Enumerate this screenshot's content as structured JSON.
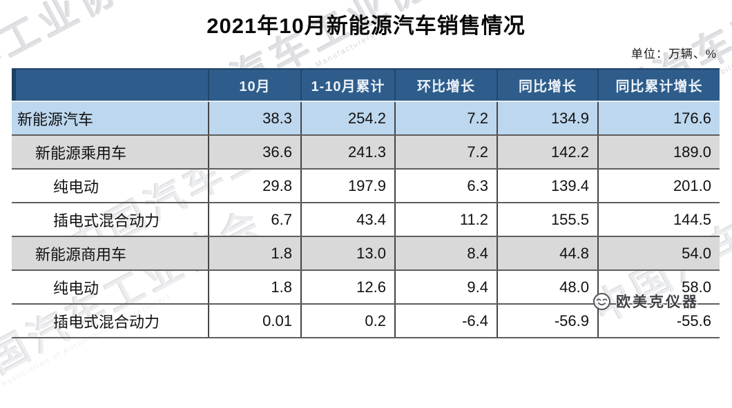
{
  "page": {
    "title": "2021年10月新能源汽车销售情况",
    "unit_note": "单位：万辆、%"
  },
  "watermark": {
    "brand_cn": "中国汽车工业协会",
    "brand_en": "Association of Automobile Manufacturers",
    "logo_text": "欧美克仪器",
    "logo_icon": "smiley-face-icon"
  },
  "colors": {
    "header_bg": "#2e5d8b",
    "header_text": "#edf2f9",
    "row_highlight_blue": "#bdd7ee",
    "row_highlight_gray": "#d9d9d9",
    "grid_line": "#5d5d5d"
  },
  "chart_data": {
    "type": "table",
    "title": "2021年10月新能源汽车销售情况",
    "unit": "单位：万辆、%",
    "columns": [
      "",
      "10月",
      "1-10月累计",
      "环比增长",
      "同比增长",
      "同比累计增长"
    ],
    "rows": [
      {
        "label": "新能源汽车",
        "indent": 0,
        "style": "blue",
        "values": [
          "38.3",
          "254.2",
          "7.2",
          "134.9",
          "176.6"
        ]
      },
      {
        "label": "新能源乘用车",
        "indent": 1,
        "style": "gray",
        "values": [
          "36.6",
          "241.3",
          "7.2",
          "142.2",
          "189.0"
        ]
      },
      {
        "label": "纯电动",
        "indent": 2,
        "style": "white",
        "values": [
          "29.8",
          "197.9",
          "6.3",
          "139.4",
          "201.0"
        ]
      },
      {
        "label": "插电式混合动力",
        "indent": 2,
        "style": "white",
        "values": [
          "6.7",
          "43.4",
          "11.2",
          "155.5",
          "144.5"
        ]
      },
      {
        "label": "新能源商用车",
        "indent": 1,
        "style": "gray",
        "values": [
          "1.8",
          "13.0",
          "8.4",
          "44.8",
          "54.0"
        ]
      },
      {
        "label": "纯电动",
        "indent": 2,
        "style": "white",
        "values": [
          "1.8",
          "12.6",
          "9.4",
          "48.0",
          "58.0"
        ]
      },
      {
        "label": "插电式混合动力",
        "indent": 2,
        "style": "white",
        "values": [
          "0.01",
          "0.2",
          "-6.4",
          "-56.9",
          "-55.6"
        ]
      }
    ]
  }
}
